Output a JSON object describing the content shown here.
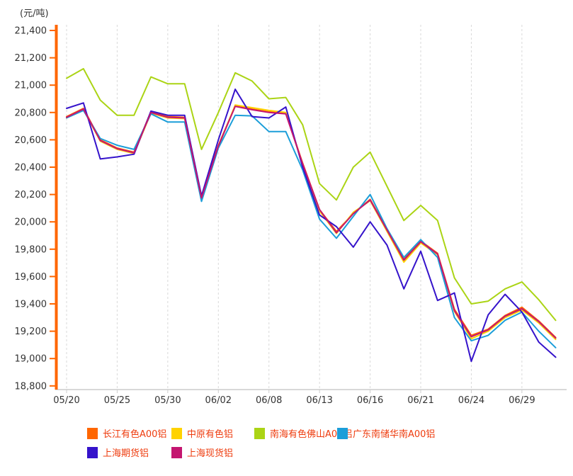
{
  "chart_data": {
    "type": "line",
    "unit_label": "(元/吨)",
    "ylim": [
      18800,
      21400
    ],
    "y_tick_step": 200,
    "y_ticks": [
      21400,
      21200,
      21000,
      20800,
      20600,
      20400,
      20200,
      20000,
      19800,
      19600,
      19400,
      19200,
      19000,
      18800
    ],
    "x_tick_labels": [
      "05/20",
      "05/25",
      "05/30",
      "06/02",
      "06/08",
      "06/13",
      "06/16",
      "06/21",
      "06/24",
      "06/29"
    ],
    "x_tick_indices": [
      0,
      3,
      6,
      9,
      12,
      15,
      18,
      21,
      24,
      27
    ],
    "n_points": 30,
    "grid": "vertical-dashed",
    "legend_position": "bottom",
    "series": [
      {
        "name": "长江有色A00铝",
        "color": "#ff6600",
        "values": [
          20770,
          20830,
          20600,
          20540,
          20510,
          20805,
          20770,
          20765,
          20180,
          20560,
          20850,
          20825,
          20805,
          20795,
          20430,
          20090,
          19930,
          20060,
          20165,
          19945,
          19730,
          19860,
          19770,
          19360,
          19170,
          19215,
          19315,
          19375,
          19275,
          19155
        ]
      },
      {
        "name": "中原有色铝",
        "color": "#ffd200",
        "values": [
          20760,
          20820,
          20590,
          20530,
          20500,
          20795,
          20760,
          20755,
          20170,
          20550,
          20855,
          20835,
          20815,
          20800,
          20420,
          20080,
          19915,
          20070,
          20155,
          19930,
          19705,
          19845,
          19760,
          19345,
          19145,
          19200,
          19300,
          19355,
          19260,
          19140
        ]
      },
      {
        "name": "南海有色佛山A00铝",
        "color": "#abd415",
        "values": [
          21050,
          21120,
          20890,
          20780,
          20780,
          21060,
          21010,
          21010,
          20530,
          20800,
          21090,
          21030,
          20900,
          20910,
          20710,
          20280,
          20160,
          20400,
          20510,
          20260,
          20010,
          20120,
          20010,
          19590,
          19400,
          19420,
          19510,
          19560,
          19430,
          19280
        ]
      },
      {
        "name": "广东南储华南A00铝",
        "color": "#1c9ed9",
        "values": [
          20760,
          20815,
          20610,
          20560,
          20530,
          20790,
          20730,
          20730,
          20150,
          20540,
          20780,
          20775,
          20660,
          20660,
          20380,
          20020,
          19880,
          20040,
          20200,
          19950,
          19740,
          19870,
          19740,
          19300,
          19130,
          19170,
          19280,
          19340,
          19200,
          19080
        ]
      },
      {
        "name": "上海期货铝",
        "color": "#3513cb",
        "values": [
          20830,
          20870,
          20460,
          20475,
          20495,
          20810,
          20780,
          20780,
          20190,
          20600,
          20970,
          20770,
          20760,
          20840,
          20400,
          20050,
          19965,
          19815,
          20000,
          19830,
          19510,
          19785,
          19425,
          19480,
          18980,
          19320,
          19470,
          19340,
          19120,
          19010
        ]
      },
      {
        "name": "上海现货铝",
        "color": "#c41570",
        "values": [
          20765,
          20825,
          20595,
          20535,
          20505,
          20800,
          20765,
          20760,
          20175,
          20555,
          20845,
          20820,
          20800,
          20790,
          20425,
          20090,
          19920,
          20060,
          20160,
          19940,
          19720,
          19855,
          19765,
          19350,
          19160,
          19210,
          19310,
          19365,
          19270,
          19150
        ]
      }
    ],
    "colors": {
      "axis": "#ff6600",
      "axis_text": "#333333",
      "gridline": "#d9d9d9",
      "x_axis_line": "#cccccc",
      "legend_text": "#ee3b0d",
      "background": "#ffffff"
    }
  }
}
